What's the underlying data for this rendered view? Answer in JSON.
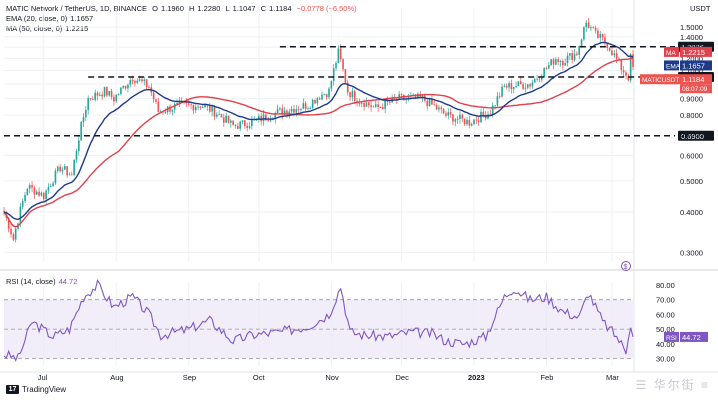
{
  "header": {
    "symbol": "MATIC Network / TetherUS, 1D, BINANCE",
    "open_label": "O",
    "open": "1.1960",
    "high_label": "H",
    "high": "1.2280",
    "low_label": "L",
    "low": "1.1047",
    "close_label": "C",
    "close": "1.1184",
    "change": "−0.0778 (−6.50%)",
    "ema_label": "EMA (20, close, 0)",
    "ema_value": "1.1657",
    "ma_label": "MA (50, close, 0)",
    "ma_value": "1.2215"
  },
  "rsi_header": {
    "label": "RSI (14, close)",
    "value": "44.72"
  },
  "branding": {
    "tradingview": "TradingView",
    "watermark": "☰ 华尔街 ≡"
  },
  "colors": {
    "up": "#26a69a",
    "down": "#ef5350",
    "ema": "#1e3a8a",
    "ma": "#e0424b",
    "rsi": "#7e57c2",
    "rsi_band": "#ede7f6",
    "price_tag": "#ef5350",
    "level": "#131722"
  },
  "chart_data": [
    {
      "type": "candlestick",
      "title": "MATIC Network / TetherUS, 1D, BINANCE",
      "yunit": "USDT",
      "yscale": "log",
      "ylim": [
        0.28,
        1.72
      ],
      "y_ticks": [
        0.3,
        0.4,
        0.5,
        0.6,
        0.7,
        0.8,
        0.9,
        1.0,
        1.1,
        1.2,
        1.3,
        1.4,
        1.5
      ],
      "y_tick_labels": [
        "0.3000",
        "0.4000",
        "0.5000",
        "0.6000",
        "0.7000",
        "0.8000",
        "0.9000",
        "1.0000",
        "1.1000",
        "1.2000",
        "1.3000",
        "1.4000",
        "1.5000"
      ],
      "y_axis_title": "USDT",
      "x_tick_labels": [
        "Jul",
        "Aug",
        "Sep",
        "Oct",
        "Nov",
        "Dec",
        "2023",
        "Feb",
        "Mar"
      ],
      "x_tick_dates": [
        "2022-07-01",
        "2022-08-01",
        "2022-09-01",
        "2022-10-01",
        "2022-11-01",
        "2022-12-01",
        "2023-01-01",
        "2023-02-01",
        "2023-03-01"
      ],
      "date_range": [
        "2022-06-14",
        "2023-03-10"
      ],
      "levels": [
        {
          "value": 1.3036,
          "label": "1.3036",
          "from": "2022-10-10"
        },
        {
          "value": 1.05,
          "label": "1.0500",
          "from": "2022-07-20"
        },
        {
          "value": 0.69,
          "label": "0.6900",
          "from": "2022-06-14"
        }
      ],
      "price_tags": [
        {
          "name": "MA",
          "value": "1.2215"
        },
        {
          "name": "EMA",
          "value": "1.1657"
        },
        {
          "name": "MATICUSDT",
          "value": "1.1184",
          "countdown": "08:07:09"
        }
      ],
      "close_anchors": [
        [
          "2022-06-14",
          0.4
        ],
        [
          "2022-06-18",
          0.33
        ],
        [
          "2022-06-24",
          0.48
        ],
        [
          "2022-07-01",
          0.45
        ],
        [
          "2022-07-08",
          0.55
        ],
        [
          "2022-07-13",
          0.52
        ],
        [
          "2022-07-20",
          0.9
        ],
        [
          "2022-07-27",
          0.95
        ],
        [
          "2022-07-31",
          0.9
        ],
        [
          "2022-08-08",
          1.05
        ],
        [
          "2022-08-15",
          0.98
        ],
        [
          "2022-08-19",
          0.82
        ],
        [
          "2022-08-26",
          0.85
        ],
        [
          "2022-09-06",
          0.86
        ],
        [
          "2022-09-12",
          0.82
        ],
        [
          "2022-09-20",
          0.74
        ],
        [
          "2022-09-28",
          0.76
        ],
        [
          "2022-10-10",
          0.82
        ],
        [
          "2022-10-22",
          0.86
        ],
        [
          "2022-10-27",
          0.92
        ],
        [
          "2022-10-31",
          0.95
        ],
        [
          "2022-11-04",
          1.25
        ],
        [
          "2022-11-08",
          0.95
        ],
        [
          "2022-11-12",
          0.9
        ],
        [
          "2022-11-20",
          0.84
        ],
        [
          "2022-11-30",
          0.9
        ],
        [
          "2022-12-10",
          0.9
        ],
        [
          "2022-12-20",
          0.8
        ],
        [
          "2022-12-30",
          0.76
        ],
        [
          "2023-01-08",
          0.82
        ],
        [
          "2023-01-14",
          0.98
        ],
        [
          "2023-01-25",
          1.0
        ],
        [
          "2023-01-31",
          1.1
        ],
        [
          "2023-02-05",
          1.2
        ],
        [
          "2023-02-08",
          1.18
        ],
        [
          "2023-02-14",
          1.25
        ],
        [
          "2023-02-18",
          1.55
        ],
        [
          "2023-02-22",
          1.42
        ],
        [
          "2023-02-27",
          1.33
        ],
        [
          "2023-03-05",
          1.12
        ],
        [
          "2023-03-08",
          1.05
        ],
        [
          "2023-03-09",
          1.2
        ],
        [
          "2023-03-10",
          1.12
        ]
      ],
      "ema_period": 20,
      "ma_period": 50
    },
    {
      "type": "line",
      "title": "RSI (14, close)",
      "ylim": [
        25,
        82
      ],
      "y_ticks": [
        30,
        40,
        50,
        60,
        70,
        80
      ],
      "y_tick_labels": [
        "30.00",
        "40.00",
        "50.00",
        "60.00",
        "70.00",
        "80.00"
      ],
      "bands": [
        30,
        50,
        70
      ],
      "last_value": "44.72",
      "last_label": "RSI",
      "rsi_anchors": [
        [
          "2022-06-14",
          33
        ],
        [
          "2022-06-20",
          30
        ],
        [
          "2022-06-26",
          55
        ],
        [
          "2022-07-05",
          45
        ],
        [
          "2022-07-12",
          50
        ],
        [
          "2022-07-18",
          72
        ],
        [
          "2022-07-24",
          80
        ],
        [
          "2022-07-31",
          65
        ],
        [
          "2022-08-08",
          72
        ],
        [
          "2022-08-15",
          60
        ],
        [
          "2022-08-20",
          46
        ],
        [
          "2022-09-01",
          50
        ],
        [
          "2022-09-10",
          56
        ],
        [
          "2022-09-20",
          42
        ],
        [
          "2022-09-28",
          46
        ],
        [
          "2022-10-10",
          48
        ],
        [
          "2022-10-22",
          52
        ],
        [
          "2022-10-31",
          60
        ],
        [
          "2022-11-05",
          79
        ],
        [
          "2022-11-09",
          48
        ],
        [
          "2022-11-15",
          46
        ],
        [
          "2022-11-25",
          45
        ],
        [
          "2022-12-05",
          48
        ],
        [
          "2022-12-14",
          47
        ],
        [
          "2022-12-20",
          42
        ],
        [
          "2022-12-28",
          40
        ],
        [
          "2023-01-06",
          45
        ],
        [
          "2023-01-14",
          72
        ],
        [
          "2023-01-18",
          78
        ],
        [
          "2023-01-25",
          70
        ],
        [
          "2023-02-01",
          72
        ],
        [
          "2023-02-08",
          62
        ],
        [
          "2023-02-15",
          58
        ],
        [
          "2023-02-19",
          75
        ],
        [
          "2023-02-25",
          55
        ],
        [
          "2023-03-03",
          45
        ],
        [
          "2023-03-07",
          35
        ],
        [
          "2023-03-08",
          46
        ],
        [
          "2023-03-09",
          54
        ],
        [
          "2023-03-10",
          44.72
        ]
      ]
    }
  ]
}
